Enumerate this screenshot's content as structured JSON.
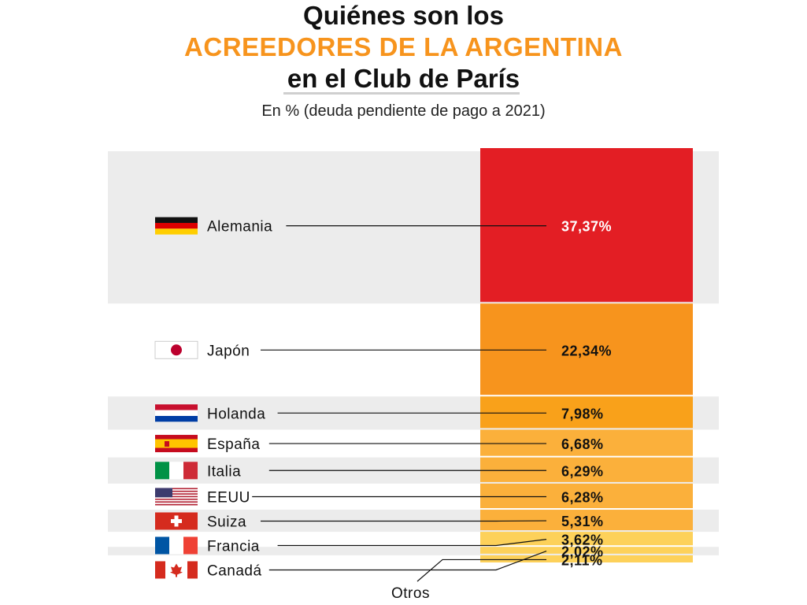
{
  "header": {
    "title_line1": "Quiénes son los",
    "title_line2": "ACREEDORES DE LA ARGENTINA",
    "title_line3": "en el Club de París",
    "subtitle": "En % (deuda pendiente de pago a 2021)"
  },
  "colors": {
    "accent": "#f7941d",
    "band": "#ececec"
  },
  "chart_data": {
    "type": "bar",
    "orientation": "stacked-vertical",
    "title": "Quiénes son los ACREEDORES DE LA ARGENTINA en el Club de París",
    "subtitle": "En % (deuda pendiente de pago a 2021)",
    "categories": [
      "Alemania",
      "Japón",
      "Holanda",
      "España",
      "Italia",
      "EEUU",
      "Suiza",
      "Francia",
      "Canadá",
      "Otros"
    ],
    "values": [
      37.37,
      22.34,
      7.98,
      6.68,
      6.29,
      6.28,
      5.31,
      3.62,
      2.02,
      2.11
    ],
    "value_labels": [
      "37,37%",
      "22,34%",
      "7,98%",
      "6,68%",
      "6,29%",
      "6,28%",
      "5,31%",
      "3,62%",
      "2,02%",
      "2,11%"
    ],
    "segment_colors": [
      "#e31e24",
      "#f7941d",
      "#f9a11a",
      "#fbb03b",
      "#fbb03b",
      "#fbb03b",
      "#fbb03b",
      "#fdd15a",
      "#fdd15a",
      "#fdd15a"
    ],
    "flags": [
      "germany-flag",
      "japan-flag",
      "netherlands-flag",
      "spain-flag",
      "italy-flag",
      "usa-flag",
      "switzerland-flag",
      "france-flag",
      "canada-flag",
      ""
    ],
    "unit": "%",
    "legend": "none",
    "grid": false
  }
}
